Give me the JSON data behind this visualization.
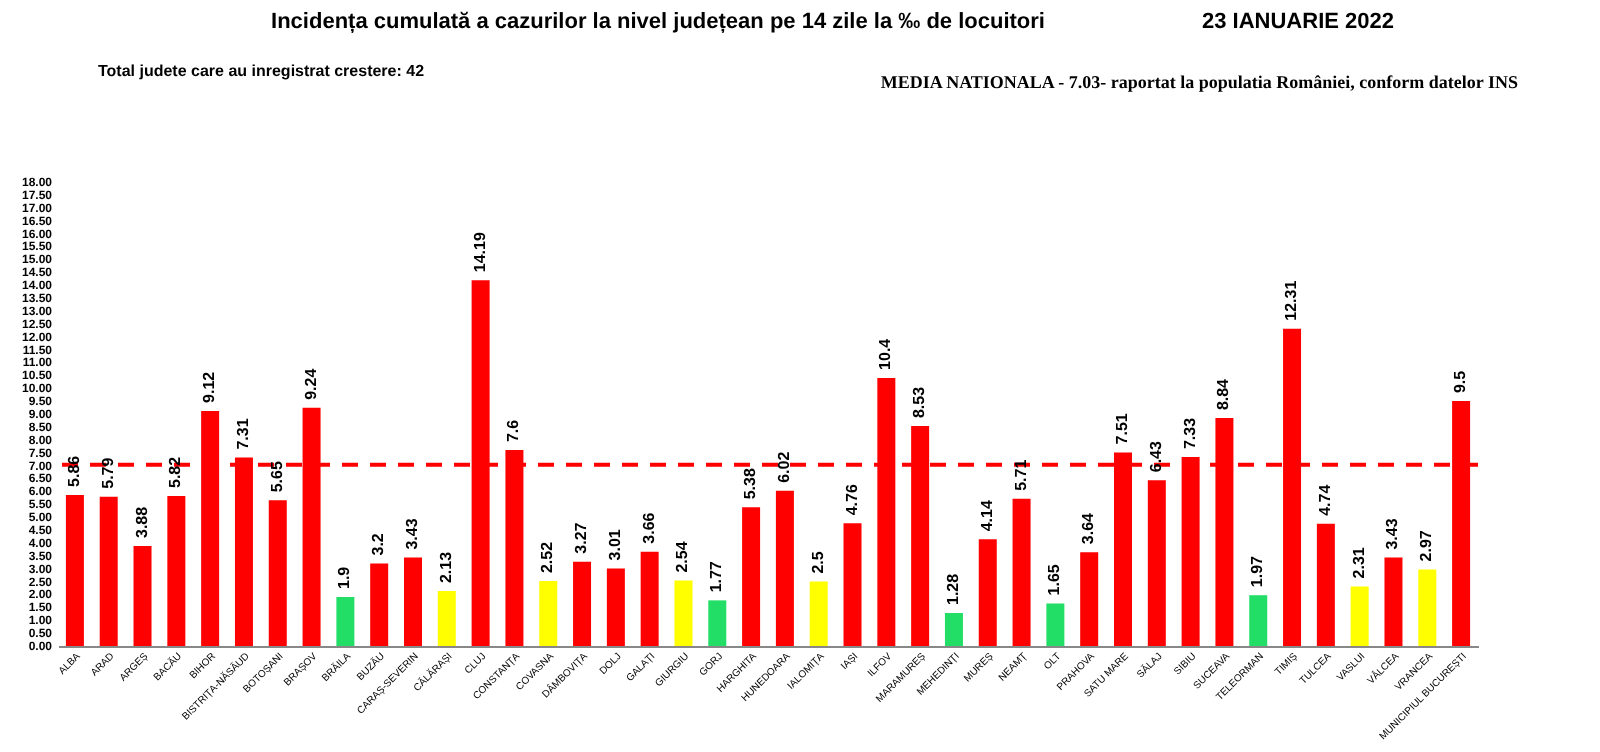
{
  "chart_data": {
    "type": "bar",
    "title": "Incidența cumulată a cazurilor la nivel județean pe 14 zile la ‰ de locuitori",
    "subtitle": "23 IANUARIE 2022",
    "annotations": [
      "Total judete care au inregistrat crestere: 42",
      "MEDIA NATIONALA - 7.03-  raportat la populatia României, conform datelor INS"
    ],
    "categories": [
      "ALBA",
      "ARAD",
      "ARGEȘ",
      "BACĂU",
      "BIHOR",
      "BISTRIȚA-NĂSĂUD",
      "BOTOȘANI",
      "BRAȘOV",
      "BRĂILA",
      "BUZĂU",
      "CARAȘ-SEVERIN",
      "CĂLĂRAȘI",
      "CLUJ",
      "CONSTANȚA",
      "COVASNA",
      "DÂMBOVIȚA",
      "DOLJ",
      "GALAȚI",
      "GIURGIU",
      "GORJ",
      "HARGHITA",
      "HUNEDOARA",
      "IALOMIȚA",
      "IAȘI",
      "ILFOV",
      "MARAMUREȘ",
      "MEHEDINȚI",
      "MUREȘ",
      "NEAMȚ",
      "OLT",
      "PRAHOVA",
      "SATU MARE",
      "SĂLAJ",
      "SIBIU",
      "SUCEAVA",
      "TELEORMAN",
      "TIMIȘ",
      "TULCEA",
      "VASLUI",
      "VÂLCEA",
      "VRANCEA",
      "MUNICIPIUL BUCUREȘTI"
    ],
    "values": [
      5.86,
      5.79,
      3.88,
      5.82,
      9.12,
      7.31,
      5.65,
      9.24,
      1.9,
      3.2,
      3.43,
      2.13,
      14.19,
      7.6,
      2.52,
      3.27,
      3.01,
      3.66,
      2.54,
      1.77,
      5.38,
      6.02,
      2.5,
      4.76,
      10.4,
      8.53,
      1.28,
      4.14,
      5.71,
      1.65,
      3.64,
      7.51,
      6.43,
      7.33,
      8.84,
      1.97,
      12.31,
      4.74,
      2.31,
      3.43,
      2.97,
      9.5
    ],
    "colors": [
      "#ff0000",
      "#ff0000",
      "#ff0000",
      "#ff0000",
      "#ff0000",
      "#ff0000",
      "#ff0000",
      "#ff0000",
      "#22dd66",
      "#ff0000",
      "#ff0000",
      "#ffff00",
      "#ff0000",
      "#ff0000",
      "#ffff00",
      "#ff0000",
      "#ff0000",
      "#ff0000",
      "#ffff00",
      "#22dd66",
      "#ff0000",
      "#ff0000",
      "#ffff00",
      "#ff0000",
      "#ff0000",
      "#ff0000",
      "#22dd66",
      "#ff0000",
      "#ff0000",
      "#22dd66",
      "#ff0000",
      "#ff0000",
      "#ff0000",
      "#ff0000",
      "#ff0000",
      "#22dd66",
      "#ff0000",
      "#ff0000",
      "#ffff00",
      "#ff0000",
      "#ffff00",
      "#ff0000"
    ],
    "ylim": [
      0,
      18
    ],
    "yticks": [
      {
        "value": 0,
        "label": "0.00"
      },
      {
        "value": 0.5,
        "label": "0.50"
      },
      {
        "value": 1,
        "label": "1.00"
      },
      {
        "value": 1.5,
        "label": "1.50"
      },
      {
        "value": 2,
        "label": "2.00"
      },
      {
        "value": 2.5,
        "label": "2.50"
      },
      {
        "value": 3,
        "label": "3.00"
      },
      {
        "value": 3.5,
        "label": "3.50"
      },
      {
        "value": 4,
        "label": "4.00"
      },
      {
        "value": 4.5,
        "label": "4.50"
      },
      {
        "value": 5,
        "label": "5.00"
      },
      {
        "value": 5.5,
        "label": "5.50"
      },
      {
        "value": 6,
        "label": "6.00"
      },
      {
        "value": 6.5,
        "label": "6.50"
      },
      {
        "value": 7,
        "label": "7.00"
      },
      {
        "value": 7.5,
        "label": "7.50"
      },
      {
        "value": 8,
        "label": "8.00"
      },
      {
        "value": 8.5,
        "label": "8.50"
      },
      {
        "value": 9,
        "label": "9.00"
      },
      {
        "value": 9.5,
        "label": "9.50"
      },
      {
        "value": 10,
        "label": "10.00"
      },
      {
        "value": 10.5,
        "label": "10.50"
      },
      {
        "value": 11,
        "label": "11.00"
      },
      {
        "value": 11.5,
        "label": "11.50"
      },
      {
        "value": 12,
        "label": "12.00"
      },
      {
        "value": 12.5,
        "label": "12.50"
      },
      {
        "value": 13,
        "label": "13.00"
      },
      {
        "value": 13.5,
        "label": "13.50"
      },
      {
        "value": 14,
        "label": "14.00"
      },
      {
        "value": 14.5,
        "label": "14.50"
      },
      {
        "value": 15,
        "label": "15.00"
      },
      {
        "value": 15.5,
        "label": "15.50"
      },
      {
        "value": 16,
        "label": "16.00"
      },
      {
        "value": 16.5,
        "label": "16.50"
      },
      {
        "value": 17,
        "label": "17.00"
      },
      {
        "value": 17.5,
        "label": "17.50"
      },
      {
        "value": 18,
        "label": "18.00"
      }
    ],
    "ref_lines": [
      {
        "axis": "y",
        "value": 7.03,
        "color": "#ff0000",
        "line_style": "dashed"
      }
    ],
    "data_labels": true,
    "grid": false
  }
}
